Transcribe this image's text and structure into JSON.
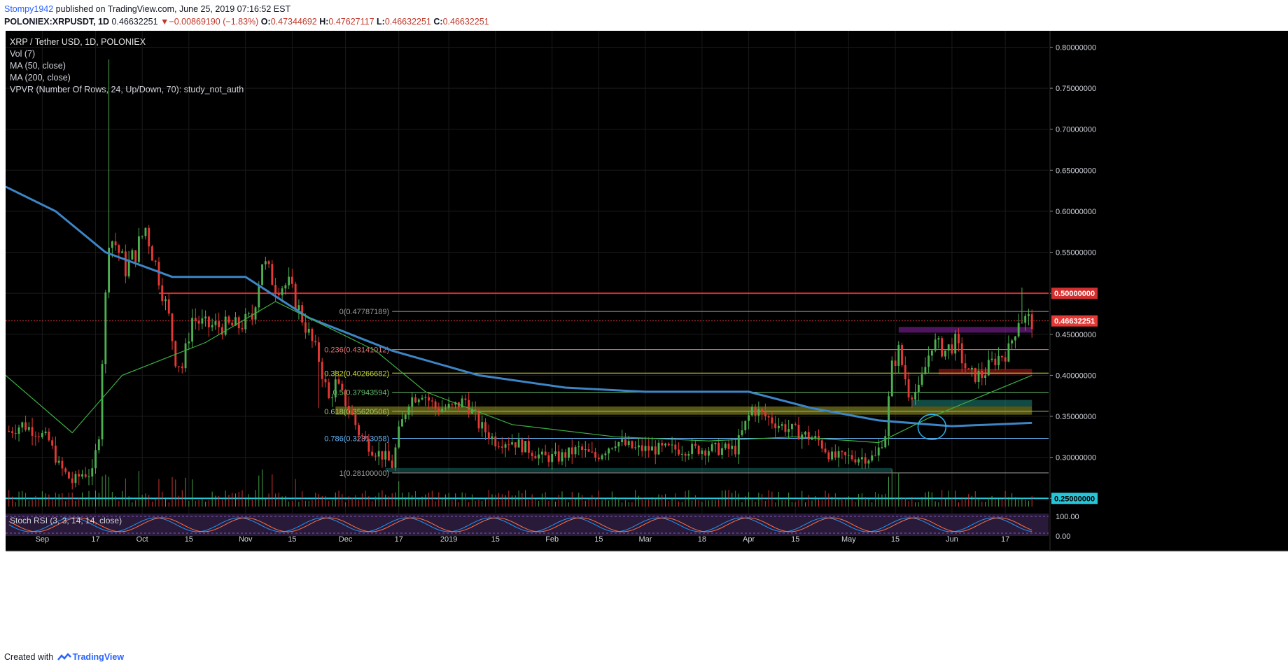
{
  "header": {
    "author": "Stompy1942",
    "published_text": "published on TradingView.com, June 25, 2019 07:16:52 EST",
    "symbol_line": "POLONIEX:XRPUSDT, 1D",
    "last": "0.46632251",
    "change": "−0.00869190 (−1.83%)",
    "o_label": "O:",
    "o_value": "0.47344692",
    "h_label": "H:",
    "h_value": "0.47627117",
    "l_label": "L:",
    "l_value": "0.46632251",
    "c_label": "C:",
    "c_value": "0.46632251"
  },
  "legend": {
    "title": "XRP / Tether USD, 1D, POLONIEX",
    "studies": [
      "Vol (7)",
      "MA (50, close)",
      "MA (200, close)",
      "VPVR (Number Of Rows, 24, Up/Down, 70): study_not_auth"
    ]
  },
  "stoch_label": "Stoch RSI (3, 3, 14, 14, close)",
  "footer": {
    "created_with": "Created with",
    "brand": "TradingView"
  },
  "colors": {
    "background": "#000000",
    "up": "#4caf50",
    "down": "#e53935",
    "ma50": "#3cb043",
    "ma200": "#3d85c6",
    "resistance": "#d32f2f",
    "support": "#26c6da",
    "grid": "#1a1a1a",
    "axis_text": "#d1d4dc",
    "price_tag": "#e53935"
  },
  "chart_data": {
    "type": "candlestick",
    "title": "XRP / Tether USD, 1D, POLONIEX",
    "y_axis": {
      "range": [
        0.24,
        0.82
      ],
      "ticks": [
        "0.80000000",
        "0.75000000",
        "0.70000000",
        "0.65000000",
        "0.60000000",
        "0.55000000",
        "0.50000000",
        "0.45000000",
        "0.40000000",
        "0.35000000",
        "0.30000000",
        "0.25000000"
      ]
    },
    "x_axis": {
      "range_days": [
        "2018-08-21",
        "2019-06-30"
      ],
      "ticks": [
        {
          "label": "Sep",
          "date": "2018-09-01"
        },
        {
          "label": "17",
          "date": "2018-09-17"
        },
        {
          "label": "Oct",
          "date": "2018-10-01"
        },
        {
          "label": "15",
          "date": "2018-10-15"
        },
        {
          "label": "Nov",
          "date": "2018-11-01"
        },
        {
          "label": "15",
          "date": "2018-11-15"
        },
        {
          "label": "Dec",
          "date": "2018-12-01"
        },
        {
          "label": "17",
          "date": "2018-12-17"
        },
        {
          "label": "2019",
          "date": "2019-01-01"
        },
        {
          "label": "15",
          "date": "2019-01-15"
        },
        {
          "label": "Feb",
          "date": "2019-02-01"
        },
        {
          "label": "15",
          "date": "2019-02-15"
        },
        {
          "label": "Mar",
          "date": "2019-03-01"
        },
        {
          "label": "18",
          "date": "2019-03-18"
        },
        {
          "label": "Apr",
          "date": "2019-04-01"
        },
        {
          "label": "15",
          "date": "2019-04-15"
        },
        {
          "label": "May",
          "date": "2019-05-01"
        },
        {
          "label": "15",
          "date": "2019-05-15"
        },
        {
          "label": "Jun",
          "date": "2019-06-01"
        },
        {
          "label": "17",
          "date": "2019-06-17"
        }
      ]
    },
    "price_anchors": [
      [
        "2018-08-21",
        0.33
      ],
      [
        "2018-08-26",
        0.34
      ],
      [
        "2018-08-31",
        0.33
      ],
      [
        "2018-09-03",
        0.32
      ],
      [
        "2018-09-06",
        0.29
      ],
      [
        "2018-09-10",
        0.27
      ],
      [
        "2018-09-13",
        0.28
      ],
      [
        "2018-09-16",
        0.28
      ],
      [
        "2018-09-18",
        0.33
      ],
      [
        "2018-09-19",
        0.42
      ],
      [
        "2018-09-21",
        0.57
      ],
      [
        "2018-09-23",
        0.56
      ],
      [
        "2018-09-26",
        0.53
      ],
      [
        "2018-09-29",
        0.55
      ],
      [
        "2018-10-02",
        0.58
      ],
      [
        "2018-10-06",
        0.52
      ],
      [
        "2018-10-09",
        0.47
      ],
      [
        "2018-10-11",
        0.42
      ],
      [
        "2018-10-13",
        0.41
      ],
      [
        "2018-10-16",
        0.47
      ],
      [
        "2018-10-20",
        0.46
      ],
      [
        "2018-10-25",
        0.46
      ],
      [
        "2018-10-30",
        0.46
      ],
      [
        "2018-11-03",
        0.47
      ],
      [
        "2018-11-06",
        0.54
      ],
      [
        "2018-11-10",
        0.51
      ],
      [
        "2018-11-14",
        0.51
      ],
      [
        "2018-11-16",
        0.49
      ],
      [
        "2018-11-20",
        0.45
      ],
      [
        "2018-11-23",
        0.42
      ],
      [
        "2018-11-26",
        0.37
      ],
      [
        "2018-11-28",
        0.39
      ],
      [
        "2018-12-02",
        0.36
      ],
      [
        "2018-12-05",
        0.33
      ],
      [
        "2018-12-09",
        0.31
      ],
      [
        "2018-12-13",
        0.3
      ],
      [
        "2018-12-15",
        0.29
      ],
      [
        "2018-12-17",
        0.33
      ],
      [
        "2018-12-20",
        0.37
      ],
      [
        "2018-12-24",
        0.38
      ],
      [
        "2018-12-28",
        0.36
      ],
      [
        "2019-01-02",
        0.36
      ],
      [
        "2019-01-06",
        0.37
      ],
      [
        "2019-01-10",
        0.34
      ],
      [
        "2019-01-15",
        0.32
      ],
      [
        "2019-01-20",
        0.32
      ],
      [
        "2019-01-25",
        0.31
      ],
      [
        "2019-01-29",
        0.3
      ],
      [
        "2019-02-03",
        0.3
      ],
      [
        "2019-02-09",
        0.31
      ],
      [
        "2019-02-14",
        0.3
      ],
      [
        "2019-02-20",
        0.32
      ],
      [
        "2019-02-26",
        0.31
      ],
      [
        "2019-03-04",
        0.31
      ],
      [
        "2019-03-10",
        0.31
      ],
      [
        "2019-03-16",
        0.31
      ],
      [
        "2019-03-22",
        0.31
      ],
      [
        "2019-03-28",
        0.31
      ],
      [
        "2019-04-02",
        0.36
      ],
      [
        "2019-04-06",
        0.35
      ],
      [
        "2019-04-10",
        0.34
      ],
      [
        "2019-04-16",
        0.33
      ],
      [
        "2019-04-22",
        0.32
      ],
      [
        "2019-04-26",
        0.3
      ],
      [
        "2019-05-03",
        0.3
      ],
      [
        "2019-05-09",
        0.3
      ],
      [
        "2019-05-12",
        0.33
      ],
      [
        "2019-05-14",
        0.41
      ],
      [
        "2019-05-16",
        0.43
      ],
      [
        "2019-05-19",
        0.38
      ],
      [
        "2019-05-22",
        0.38
      ],
      [
        "2019-05-26",
        0.44
      ],
      [
        "2019-05-30",
        0.43
      ],
      [
        "2019-06-02",
        0.44
      ],
      [
        "2019-06-06",
        0.4
      ],
      [
        "2019-06-10",
        0.4
      ],
      [
        "2019-06-14",
        0.42
      ],
      [
        "2019-06-18",
        0.43
      ],
      [
        "2019-06-21",
        0.47
      ],
      [
        "2019-06-25",
        0.466
      ]
    ],
    "ma200": [
      [
        "2018-08-21",
        0.63
      ],
      [
        "2018-09-05",
        0.6
      ],
      [
        "2018-09-20",
        0.55
      ],
      [
        "2018-10-10",
        0.52
      ],
      [
        "2018-11-01",
        0.52
      ],
      [
        "2018-11-20",
        0.47
      ],
      [
        "2018-12-15",
        0.43
      ],
      [
        "2019-01-10",
        0.4
      ],
      [
        "2019-02-05",
        0.385
      ],
      [
        "2019-03-01",
        0.38
      ],
      [
        "2019-04-01",
        0.38
      ],
      [
        "2019-04-20",
        0.36
      ],
      [
        "2019-05-10",
        0.345
      ],
      [
        "2019-06-01",
        0.338
      ],
      [
        "2019-06-25",
        0.342
      ]
    ],
    "ma50": [
      [
        "2018-08-21",
        0.4
      ],
      [
        "2018-09-10",
        0.33
      ],
      [
        "2018-09-25",
        0.4
      ],
      [
        "2018-10-20",
        0.44
      ],
      [
        "2018-11-10",
        0.49
      ],
      [
        "2018-11-25",
        0.46
      ],
      [
        "2018-12-10",
        0.43
      ],
      [
        "2018-12-25",
        0.38
      ],
      [
        "2019-01-20",
        0.34
      ],
      [
        "2019-02-20",
        0.325
      ],
      [
        "2019-03-20",
        0.32
      ],
      [
        "2019-04-15",
        0.325
      ],
      [
        "2019-05-10",
        0.318
      ],
      [
        "2019-05-25",
        0.348
      ],
      [
        "2019-06-25",
        0.4
      ]
    ],
    "fibonacci": [
      {
        "label": "0(0.47787189)",
        "value": 0.47787189
      },
      {
        "label": "0.236(0.43141012)",
        "value": 0.43141012
      },
      {
        "label": "0.382(0.40266682)",
        "value": 0.40266682
      },
      {
        "label": "0.5(0.37943594)",
        "value": 0.37943594
      },
      {
        "label": "0.618(0.35620506)",
        "value": 0.35620506
      },
      {
        "label": "0.786(0.32313058)",
        "value": 0.32313058
      },
      {
        "label": "1(0.28100000)",
        "value": 0.281
      }
    ],
    "resistance_level": {
      "label": "0.50000000",
      "value": 0.5
    },
    "support_level": {
      "label": "0.25000000",
      "value": 0.25
    },
    "last_price": {
      "label": "0.46632251",
      "value": 0.46632251
    },
    "stoch_axis": [
      "100.00",
      "0.00"
    ]
  }
}
